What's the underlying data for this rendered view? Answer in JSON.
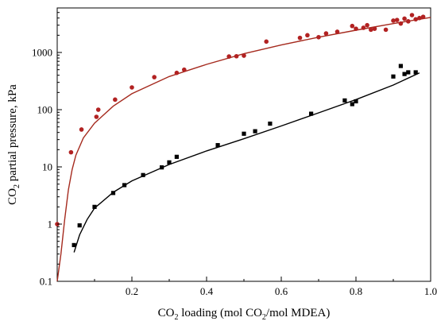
{
  "chart_data": {
    "type": "scatter",
    "title": "",
    "xlabel": {
      "main": "CO",
      "sub": "2",
      "rest1": " loading (mol CO",
      "sub2": "2",
      "rest2": "/mol MDEA)"
    },
    "ylabel": {
      "main": "CO",
      "sub": "2",
      "rest": " partial pressure, kPa"
    },
    "xlim": [
      0.0,
      1.0
    ],
    "ylim": [
      0.1,
      6000
    ],
    "yscale": "log",
    "x_ticks": [
      {
        "value": 0.2,
        "label": "0.2"
      },
      {
        "value": 0.4,
        "label": "0.4"
      },
      {
        "value": 0.6,
        "label": "0.6"
      },
      {
        "value": 0.8,
        "label": "0.8"
      },
      {
        "value": 1.0,
        "label": "1.0"
      }
    ],
    "y_ticks": [
      {
        "value": 0.1,
        "label": "0.1"
      },
      {
        "value": 1,
        "label": "1"
      },
      {
        "value": 10,
        "label": "10"
      },
      {
        "value": 100,
        "label": "100"
      },
      {
        "value": 1000,
        "label": "1000"
      }
    ],
    "grid": false,
    "series": [
      {
        "marker": "circle",
        "color": "#b22222",
        "points": [
          [
            0.0,
            1.0
          ],
          [
            0.037,
            18
          ],
          [
            0.065,
            45
          ],
          [
            0.105,
            75
          ],
          [
            0.11,
            100
          ],
          [
            0.155,
            150
          ],
          [
            0.2,
            245
          ],
          [
            0.26,
            370
          ],
          [
            0.32,
            440
          ],
          [
            0.34,
            500
          ],
          [
            0.46,
            850
          ],
          [
            0.48,
            860
          ],
          [
            0.5,
            880
          ],
          [
            0.56,
            1550
          ],
          [
            0.65,
            1800
          ],
          [
            0.67,
            2000
          ],
          [
            0.7,
            1850
          ],
          [
            0.72,
            2150
          ],
          [
            0.75,
            2300
          ],
          [
            0.79,
            2900
          ],
          [
            0.8,
            2600
          ],
          [
            0.82,
            2700
          ],
          [
            0.83,
            3000
          ],
          [
            0.84,
            2500
          ],
          [
            0.85,
            2600
          ],
          [
            0.88,
            2500
          ],
          [
            0.9,
            3600
          ],
          [
            0.91,
            3700
          ],
          [
            0.92,
            3200
          ],
          [
            0.93,
            3900
          ],
          [
            0.94,
            3500
          ],
          [
            0.95,
            4500
          ],
          [
            0.96,
            3800
          ],
          [
            0.97,
            4000
          ],
          [
            0.98,
            4200
          ]
        ]
      },
      {
        "marker": "square",
        "color": "#000000",
        "points": [
          [
            0.045,
            0.43
          ],
          [
            0.06,
            0.95
          ],
          [
            0.1,
            2.0
          ],
          [
            0.15,
            3.5
          ],
          [
            0.18,
            4.8
          ],
          [
            0.23,
            7.2
          ],
          [
            0.28,
            9.8
          ],
          [
            0.3,
            12
          ],
          [
            0.32,
            15
          ],
          [
            0.43,
            24
          ],
          [
            0.5,
            38
          ],
          [
            0.53,
            42
          ],
          [
            0.57,
            57
          ],
          [
            0.68,
            85
          ],
          [
            0.77,
            145
          ],
          [
            0.79,
            125
          ],
          [
            0.8,
            140
          ],
          [
            0.9,
            380
          ],
          [
            0.92,
            580
          ],
          [
            0.93,
            420
          ],
          [
            0.94,
            450
          ],
          [
            0.96,
            450
          ]
        ]
      }
    ],
    "fit_lines": [
      {
        "color": "#a52a1e",
        "points": [
          [
            0.0,
            0.1
          ],
          [
            0.01,
            0.3
          ],
          [
            0.02,
            1.2
          ],
          [
            0.03,
            4
          ],
          [
            0.04,
            9
          ],
          [
            0.05,
            16
          ],
          [
            0.07,
            32
          ],
          [
            0.1,
            58
          ],
          [
            0.15,
            115
          ],
          [
            0.2,
            190
          ],
          [
            0.3,
            380
          ],
          [
            0.4,
            620
          ],
          [
            0.5,
            950
          ],
          [
            0.6,
            1350
          ],
          [
            0.7,
            1850
          ],
          [
            0.8,
            2450
          ],
          [
            0.9,
            3200
          ],
          [
            1.0,
            4100
          ]
        ]
      },
      {
        "color": "#000000",
        "points": [
          [
            0.045,
            0.32
          ],
          [
            0.06,
            0.65
          ],
          [
            0.08,
            1.2
          ],
          [
            0.1,
            1.9
          ],
          [
            0.15,
            3.6
          ],
          [
            0.2,
            5.7
          ],
          [
            0.3,
            11
          ],
          [
            0.4,
            19
          ],
          [
            0.5,
            31
          ],
          [
            0.6,
            52
          ],
          [
            0.7,
            88
          ],
          [
            0.8,
            150
          ],
          [
            0.9,
            270
          ],
          [
            0.97,
            440
          ]
        ]
      }
    ]
  }
}
